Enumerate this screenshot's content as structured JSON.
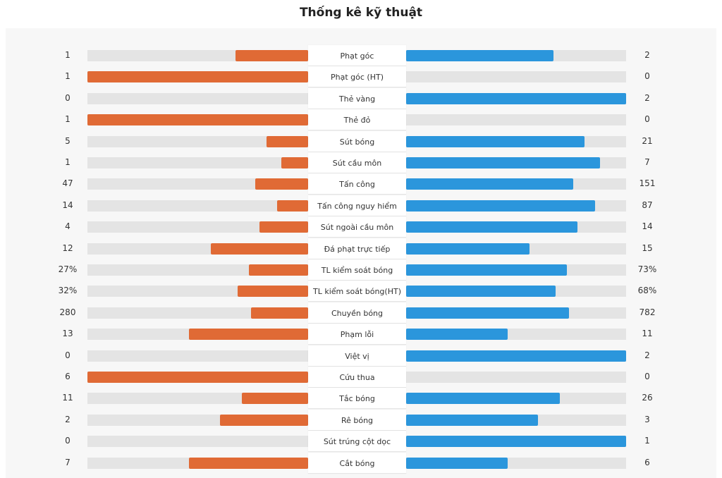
{
  "title": "Thống kê kỹ thuật",
  "colors": {
    "home": "#e06a35",
    "away": "#2b96dc",
    "track": "#e4e4e4"
  },
  "stats": [
    {
      "label": "Phạt góc",
      "home": "1",
      "away": "2",
      "home_fill": 0.33,
      "away_fill": 0.67
    },
    {
      "label": "Phạt góc (HT)",
      "home": "1",
      "away": "0",
      "home_fill": 1.0,
      "away_fill": 0.0
    },
    {
      "label": "Thẻ vàng",
      "home": "0",
      "away": "2",
      "home_fill": 0.0,
      "away_fill": 1.0
    },
    {
      "label": "Thẻ đỏ",
      "home": "1",
      "away": "0",
      "home_fill": 1.0,
      "away_fill": 0.0
    },
    {
      "label": "Sút bóng",
      "home": "5",
      "away": "21",
      "home_fill": 0.19,
      "away_fill": 0.81
    },
    {
      "label": "Sút cầu môn",
      "home": "1",
      "away": "7",
      "home_fill": 0.12,
      "away_fill": 0.88
    },
    {
      "label": "Tấn công",
      "home": "47",
      "away": "151",
      "home_fill": 0.24,
      "away_fill": 0.76
    },
    {
      "label": "Tấn công nguy hiểm",
      "home": "14",
      "away": "87",
      "home_fill": 0.14,
      "away_fill": 0.86
    },
    {
      "label": "Sút ngoài cầu môn",
      "home": "4",
      "away": "14",
      "home_fill": 0.22,
      "away_fill": 0.78
    },
    {
      "label": "Đá phạt trực tiếp",
      "home": "12",
      "away": "15",
      "home_fill": 0.44,
      "away_fill": 0.56
    },
    {
      "label": "TL kiểm soát bóng",
      "home": "27%",
      "away": "73%",
      "home_fill": 0.27,
      "away_fill": 0.73
    },
    {
      "label": "TL kiểm soát bóng(HT)",
      "home": "32%",
      "away": "68%",
      "home_fill": 0.32,
      "away_fill": 0.68
    },
    {
      "label": "Chuyền bóng",
      "home": "280",
      "away": "782",
      "home_fill": 0.26,
      "away_fill": 0.74
    },
    {
      "label": "Phạm lỗi",
      "home": "13",
      "away": "11",
      "home_fill": 0.54,
      "away_fill": 0.46
    },
    {
      "label": "Việt vị",
      "home": "0",
      "away": "2",
      "home_fill": 0.0,
      "away_fill": 1.0
    },
    {
      "label": "Cứu thua",
      "home": "6",
      "away": "0",
      "home_fill": 1.0,
      "away_fill": 0.0
    },
    {
      "label": "Tắc bóng",
      "home": "11",
      "away": "26",
      "home_fill": 0.3,
      "away_fill": 0.7
    },
    {
      "label": "Rê bóng",
      "home": "2",
      "away": "3",
      "home_fill": 0.4,
      "away_fill": 0.6
    },
    {
      "label": "Sút trúng cột dọc",
      "home": "0",
      "away": "1",
      "home_fill": 0.0,
      "away_fill": 1.0
    },
    {
      "label": "Cắt bóng",
      "home": "7",
      "away": "6",
      "home_fill": 0.54,
      "away_fill": 0.46
    }
  ]
}
